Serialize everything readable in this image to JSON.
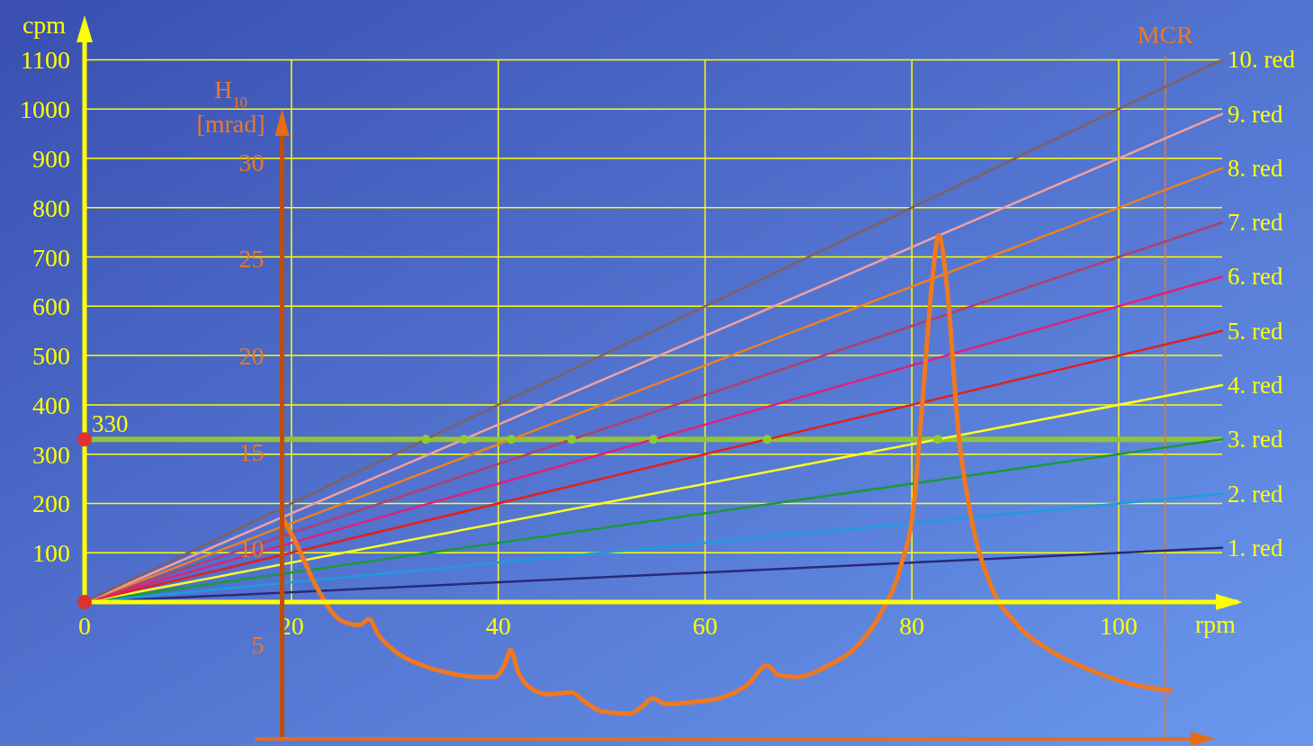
{
  "chart_data": {
    "type": "line",
    "xlabel": "rpm",
    "ylabel": "cpm",
    "y2label": "H$_{10}$ [mrad]",
    "xlim": [
      0,
      112
    ],
    "ylim": [
      -281,
      1150
    ],
    "y2lim": [
      0,
      36.6
    ],
    "xticks": [
      0,
      20,
      40,
      60,
      80,
      100
    ],
    "yticks": [
      100,
      200,
      300,
      400,
      500,
      600,
      700,
      800,
      900,
      1000,
      1100
    ],
    "y2ticks": [
      5,
      10,
      15,
      20,
      25,
      30
    ],
    "grid": true,
    "ref_lines": [
      {
        "axis": "y",
        "value": 330,
        "label": "330",
        "color": "#8fc43a"
      },
      {
        "axis": "x",
        "value": 104.5,
        "label": "MCR",
        "color": "#f07820"
      }
    ],
    "series": [
      {
        "name": "1. red",
        "color": "#2a2a7a",
        "x": [
          0,
          110
        ],
        "values": [
          0,
          110
        ]
      },
      {
        "name": "2. red",
        "color": "#1e9be0",
        "x": [
          0,
          110
        ],
        "values": [
          0,
          220
        ]
      },
      {
        "name": "3. red",
        "color": "#1a9a3a",
        "x": [
          0,
          110
        ],
        "values": [
          0,
          330
        ]
      },
      {
        "name": "4. red",
        "color": "#ffff20",
        "x": [
          0,
          110
        ],
        "values": [
          0,
          440
        ]
      },
      {
        "name": "5. red",
        "color": "#e02020",
        "x": [
          0,
          110
        ],
        "values": [
          0,
          550
        ]
      },
      {
        "name": "6. red",
        "color": "#e0207a",
        "x": [
          0,
          110
        ],
        "values": [
          0,
          660
        ]
      },
      {
        "name": "7. red",
        "color": "#b04070",
        "x": [
          0,
          110
        ],
        "values": [
          0,
          770
        ]
      },
      {
        "name": "8. red",
        "color": "#f08020",
        "x": [
          0,
          110
        ],
        "values": [
          0,
          880
        ]
      },
      {
        "name": "9. red",
        "color": "#f0a0a0",
        "x": [
          0,
          110
        ],
        "values": [
          0,
          990
        ]
      },
      {
        "name": "10. red",
        "color": "#806060",
        "x": [
          0,
          110
        ],
        "values": [
          0,
          1100
        ]
      },
      {
        "type": "scatter",
        "color": "#8fcc30",
        "x": [
          33,
          36.7,
          41.25,
          47.1,
          55,
          66,
          82.5
        ],
        "values": [
          330,
          330,
          330,
          330,
          330,
          330,
          330
        ]
      },
      {
        "type": "scatter",
        "color": "#e03030",
        "x": [
          0,
          0
        ],
        "values": [
          330,
          0
        ]
      },
      {
        "axis": "y2",
        "color": "#f07820",
        "x": [
          19.1,
          20.5,
          22.3,
          24.9,
          26.6,
          27.5,
          28.4,
          30.1,
          32.7,
          35.3,
          37.9,
          39.7,
          40.6,
          41.2,
          41.9,
          43.2,
          44.9,
          47.1,
          48.4,
          50.1,
          52.7,
          54,
          54.9,
          56.2,
          58.8,
          61.4,
          64.1,
          66,
          67.1,
          68.8,
          71.9,
          74.5,
          77.1,
          78.9,
          80.2,
          81,
          81.9,
          82.6,
          83.4,
          84.5,
          85.8,
          87.6,
          90.2,
          93.6,
          98,
          101.5,
          105
        ],
        "values": [
          11.6,
          10.2,
          8.1,
          6.2,
          6,
          6.3,
          5.5,
          4.6,
          3.9,
          3.5,
          3.3,
          3.3,
          3.9,
          4.7,
          3.6,
          2.7,
          2.4,
          2.5,
          2,
          1.5,
          1.4,
          1.8,
          2.2,
          1.9,
          2,
          2.2,
          2.9,
          3.9,
          3.4,
          3.3,
          3.9,
          4.8,
          6.7,
          9,
          12.3,
          17.4,
          23.5,
          26.2,
          23.5,
          16,
          11.4,
          8.1,
          6,
          4.6,
          3.5,
          2.9,
          2.6
        ]
      }
    ]
  }
}
